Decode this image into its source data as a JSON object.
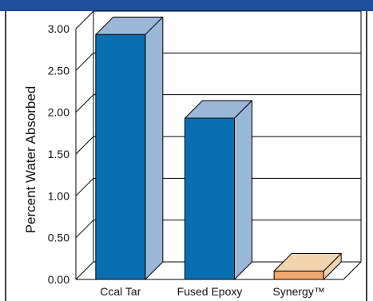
{
  "colors": {
    "header_bar": "#1f4e9a",
    "blue_front": "#0a6fb0",
    "blue_light": "#9ab7d8",
    "orange_front": "#f2a86a",
    "orange_light": "#f1d3ae",
    "grid": "#000000"
  },
  "chart_data": {
    "type": "bar",
    "categories": [
      "Ccal Tar",
      "Fused Epoxy",
      "Synergy™"
    ],
    "values": [
      2.93,
      1.93,
      0.1
    ],
    "series_colors": [
      "blue",
      "blue",
      "orange"
    ],
    "title": "",
    "xlabel": "",
    "ylabel": "Percent Water Absorbed",
    "ylim": [
      0,
      3.0
    ],
    "yticks": [
      0.0,
      0.5,
      1.0,
      1.5,
      2.0,
      2.5,
      3.0
    ],
    "ytick_labels": [
      "0.00",
      "0.50",
      "1.00",
      "1.50",
      "2.00",
      "2.50",
      "3.00"
    ],
    "grid": true,
    "style": "3d-bar"
  }
}
